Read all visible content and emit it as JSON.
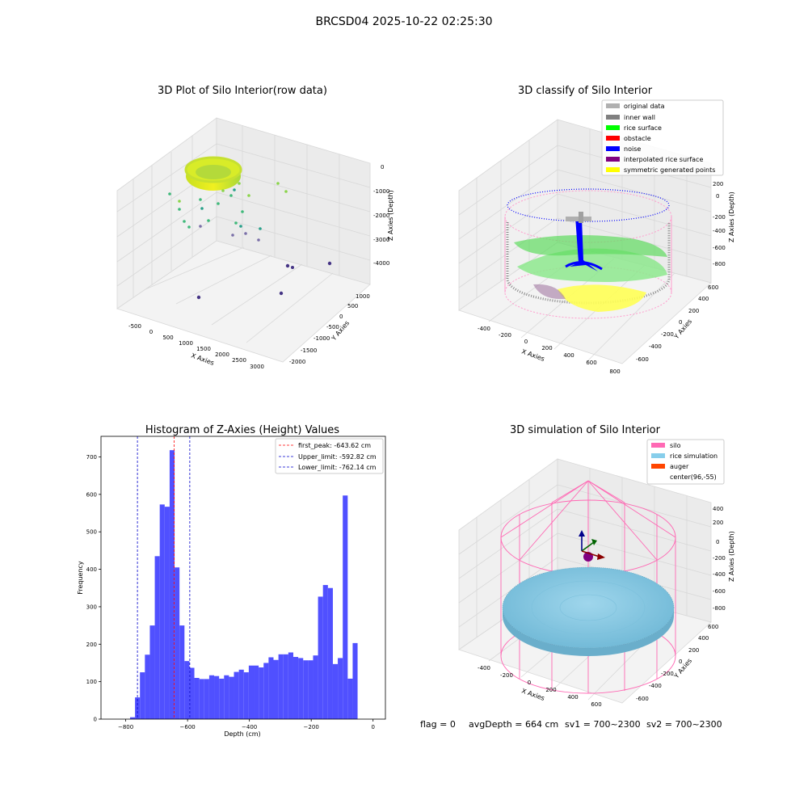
{
  "figure": {
    "suptitle": "BRCSD04 2025-10-22 02:25:30",
    "footer": {
      "flag": "flag = 0",
      "avg_depth": "avgDepth = 664 cm",
      "sv1": "sv1 = 700~2300",
      "sv2": "sv2 = 700~2300"
    }
  },
  "colors": {
    "histogram_bar": "#5050ff",
    "first_peak_line": "#ff0000",
    "limit_lines": "#0000cc",
    "silo_wire": "#ff69b4",
    "rice_simulation": "#87ceeb",
    "auger": "#ff4500",
    "noise": "#0000ff",
    "rice_surface": "#00ff00",
    "inner_wall": "#808080",
    "original_data": "#b0b0b0",
    "interpolated_rice_surface": "#800080",
    "symmetric_generated_points": "#ffff00"
  },
  "panels": {
    "raw": {
      "title": "3D Plot of Silo Interior(row data)",
      "xlabel": "X Axies",
      "ylabel": "Y Axies",
      "zlabel": "Z Axies (Depth)",
      "x_ticks": [
        "-500",
        "0",
        "500",
        "1000",
        "1500",
        "2000",
        "2500",
        "3000"
      ],
      "y_ticks": [
        "1000",
        "500",
        "0",
        "-500",
        "-1000",
        "-1500",
        "-2000"
      ],
      "z_ticks": [
        "0",
        "-1000",
        "-2000",
        "-3000",
        "-4000"
      ]
    },
    "classify": {
      "title": "3D classify of Silo Interior",
      "xlabel": "X Axies",
      "ylabel": "Y Axies",
      "zlabel": "Z Axies (Depth)",
      "x_ticks": [
        "-400",
        "-200",
        "0",
        "200",
        "400",
        "600",
        "800"
      ],
      "y_ticks": [
        "600",
        "400",
        "200",
        "0",
        "-200",
        "-400",
        "-600"
      ],
      "z_ticks": [
        "200",
        "0",
        "-200",
        "-400",
        "-600",
        "-800"
      ],
      "legend": [
        {
          "label": "original data",
          "color": "#b0b0b0"
        },
        {
          "label": "inner wall",
          "color": "#808080"
        },
        {
          "label": "rice surface",
          "color": "#00ff00"
        },
        {
          "label": "obstacle",
          "color": "#ff0000"
        },
        {
          "label": "noise",
          "color": "#0000ff"
        },
        {
          "label": "interpolated rice surface",
          "color": "#800080"
        },
        {
          "label": "symmetric generated points",
          "color": "#ffff00"
        }
      ]
    },
    "simulation": {
      "title": "3D simulation of Silo Interior",
      "xlabel": "X Axies",
      "ylabel": "Y Axies",
      "zlabel": "Z Axies (Depth)",
      "x_ticks": [
        "-400",
        "-200",
        "0",
        "200",
        "400",
        "600"
      ],
      "y_ticks": [
        "600",
        "400",
        "200",
        "0",
        "-200",
        "-400",
        "-600"
      ],
      "z_ticks": [
        "400",
        "200",
        "0",
        "-200",
        "-400",
        "-600",
        "-800"
      ],
      "legend": [
        {
          "label": "silo",
          "color": "#ff69b4"
        },
        {
          "label": "rice simulation",
          "color": "#87ceeb"
        },
        {
          "label": "auger",
          "color": "#ff4500"
        },
        {
          "label": "center(96,-55)",
          "color": ""
        }
      ]
    }
  },
  "chart_data": {
    "type": "bar",
    "title": "Histogram of Z-Axies (Height) Values",
    "xlabel": "Depth (cm)",
    "ylabel": "Frequency",
    "xlim": [
      -880,
      40
    ],
    "ylim": [
      0,
      755
    ],
    "x_ticks": [
      -800,
      -600,
      -400,
      -200,
      0
    ],
    "y_ticks": [
      0,
      100,
      200,
      300,
      400,
      500,
      600,
      700
    ],
    "bin_start": -786,
    "bin_width": 16,
    "values": [
      5,
      58,
      125,
      172,
      250,
      435,
      573,
      567,
      718,
      405,
      250,
      155,
      137,
      110,
      107,
      107,
      117,
      115,
      108,
      117,
      113,
      126,
      132,
      125,
      143,
      143,
      138,
      150,
      165,
      158,
      173,
      173,
      178,
      166,
      163,
      157,
      157,
      170,
      327,
      358,
      350,
      147,
      163,
      597,
      108,
      203
    ],
    "grid": false,
    "legend_position": "top-right",
    "lines": [
      {
        "label": "first_peak: -643.62 cm",
        "x": -643.62,
        "color": "#ff0000"
      },
      {
        "label": "Upper_limit: -592.82 cm",
        "x": -592.82,
        "color": "#0000cc"
      },
      {
        "label": "Lower_limit: -762.14 cm",
        "x": -762.14,
        "color": "#0000cc"
      }
    ]
  }
}
